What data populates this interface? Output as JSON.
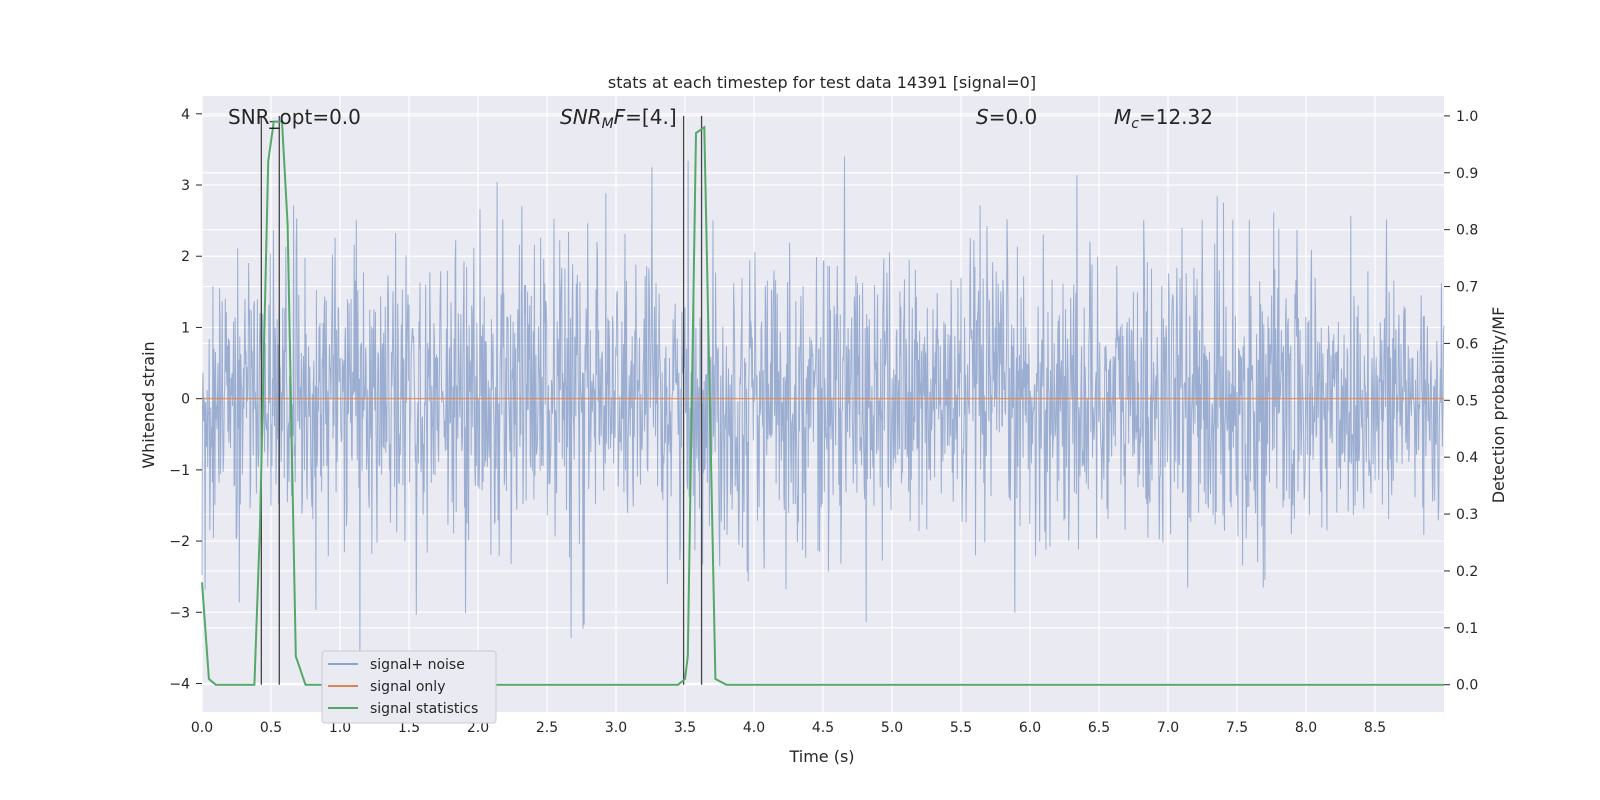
{
  "chart_data": {
    "type": "line",
    "title": "stats at each timestep for test data 14391 [signal=0]",
    "xlabel": "Time (s)",
    "ylabel": "Whitened strain",
    "y2label": "Detection probability/MF",
    "xlim": [
      0.0,
      9.0
    ],
    "ylim": [
      -4.4,
      4.25
    ],
    "y2lim": [
      -0.048,
      1.035
    ],
    "xticks": [
      "0.0",
      "0.5",
      "1.0",
      "1.5",
      "2.0",
      "2.5",
      "3.0",
      "3.5",
      "4.0",
      "4.5",
      "5.0",
      "5.5",
      "6.0",
      "6.5",
      "7.0",
      "7.5",
      "8.0",
      "8.5"
    ],
    "yticks": [
      "4",
      "3",
      "2",
      "1",
      "0",
      "−1",
      "−2",
      "−3",
      "−4"
    ],
    "y2ticks": [
      "1.0",
      "0.9",
      "0.8",
      "0.7",
      "0.6",
      "0.5",
      "0.4",
      "0.3",
      "0.2",
      "0.1",
      "0.0"
    ],
    "grid": true,
    "legend_position": "lower-left",
    "series": [
      {
        "name": "signal+ noise",
        "axis": "left",
        "color": "#4c72b0",
        "style": "dense noise, amplitude ~±2 with peaks to ~±3.8",
        "amplitude_range": [
          -3.8,
          3.4
        ]
      },
      {
        "name": "signal only",
        "axis": "left",
        "color": "#dd8452",
        "x": [
          0.0,
          9.0
        ],
        "y": [
          0.0,
          0.0
        ]
      },
      {
        "name": "signal statistics",
        "axis": "right",
        "color": "#55a868",
        "x": [
          0.0,
          0.05,
          0.1,
          0.38,
          0.42,
          0.48,
          0.52,
          0.58,
          0.62,
          0.68,
          0.75,
          0.8,
          3.45,
          3.5,
          3.52,
          3.58,
          3.64,
          3.68,
          3.72,
          3.8,
          9.0
        ],
        "y": [
          0.18,
          0.01,
          0.0,
          0.0,
          0.28,
          0.92,
          0.99,
          0.99,
          0.81,
          0.05,
          0.0,
          0.0,
          0.0,
          0.01,
          0.05,
          0.97,
          0.98,
          0.5,
          0.01,
          0.0,
          0.0
        ]
      }
    ],
    "markers": {
      "color": "#444444",
      "vlines_x": [
        0.43,
        0.56,
        3.49,
        3.62
      ],
      "hlines": [
        {
          "x": [
            0.49,
            0.57
          ],
          "y2": 0.99
        }
      ]
    },
    "annotations": [
      {
        "text": "SNR_opt=0.0",
        "x": 0.2
      },
      {
        "text_main": "SNR",
        "sub": "M",
        "text_after": "F=[4.]",
        "x": 2.6
      },
      {
        "text_main": "S",
        "text_after": "=0.0",
        "x": 5.6
      },
      {
        "text_main": "M",
        "sub": "c",
        "text_after": "=12.32",
        "x": 6.6
      }
    ],
    "colors": {
      "background": "#eaeaf2",
      "grid": "#ffffff",
      "text": "#262626"
    }
  }
}
